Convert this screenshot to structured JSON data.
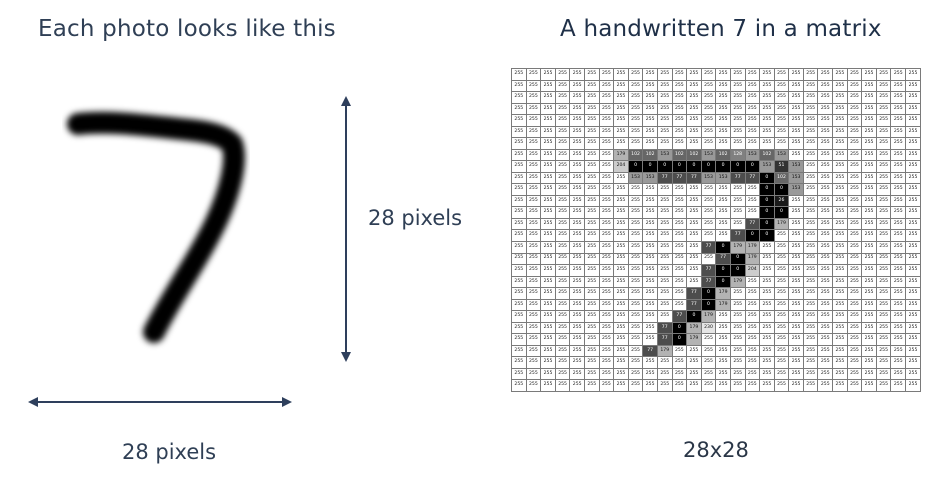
{
  "left_panel": {
    "title": "Each photo looks like this",
    "height_label": "28 pixels",
    "width_label": "28 pixels",
    "image_depicts": "handwritten-digit-7"
  },
  "right_panel": {
    "title": "A handwritten 7 in a matrix",
    "size_label": "28x28"
  },
  "colors": {
    "title_text": "#2f3f55",
    "arrow": "#2e3f5c",
    "digit_stroke": "#000000",
    "grid_line": "#7a7a7a"
  },
  "matrix": {
    "rows": 28,
    "cols": 28,
    "background_value": 255,
    "nonwhite_rows": [
      {
        "row": 7,
        "start": 7,
        "values": [
          179,
          102,
          102,
          153,
          102,
          102,
          153,
          102,
          128,
          153,
          102,
          153
        ]
      },
      {
        "row": 8,
        "start": 7,
        "values": [
          204,
          0,
          0,
          0,
          0,
          0,
          0,
          0,
          0,
          0,
          153,
          51,
          153
        ]
      },
      {
        "row": 9,
        "start": 8,
        "values": [
          153,
          153,
          77,
          77,
          77,
          153,
          153,
          77,
          77,
          0,
          102,
          153
        ]
      },
      {
        "row": 10,
        "start": 17,
        "values": [
          0,
          0,
          153
        ]
      },
      {
        "row": 11,
        "start": 17,
        "values": [
          0,
          26
        ]
      },
      {
        "row": 12,
        "start": 17,
        "values": [
          0,
          0
        ]
      },
      {
        "row": 13,
        "start": 16,
        "values": [
          77,
          0,
          179
        ]
      },
      {
        "row": 14,
        "start": 15,
        "values": [
          77,
          0,
          0
        ]
      },
      {
        "row": 15,
        "start": 13,
        "values": [
          77,
          0,
          179,
          179
        ]
      },
      {
        "row": 16,
        "start": 14,
        "values": [
          77,
          0,
          179
        ]
      },
      {
        "row": 17,
        "start": 13,
        "values": [
          77,
          0,
          0,
          204
        ]
      },
      {
        "row": 18,
        "start": 13,
        "values": [
          77,
          0,
          179
        ]
      },
      {
        "row": 19,
        "start": 12,
        "values": [
          77,
          0,
          179
        ]
      },
      {
        "row": 20,
        "start": 12,
        "values": [
          77,
          0,
          179
        ]
      },
      {
        "row": 21,
        "start": 11,
        "values": [
          77,
          0,
          179
        ]
      },
      {
        "row": 22,
        "start": 10,
        "values": [
          77,
          0,
          179,
          230
        ]
      },
      {
        "row": 23,
        "start": 10,
        "values": [
          77,
          0,
          179
        ]
      },
      {
        "row": 24,
        "start": 9,
        "values": [
          77,
          179
        ]
      }
    ]
  }
}
